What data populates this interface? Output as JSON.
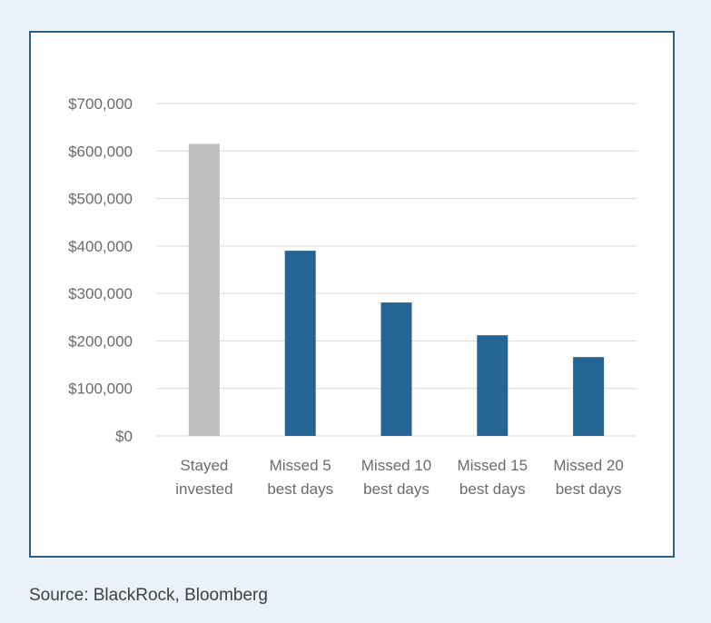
{
  "chart_data": {
    "type": "bar",
    "categories": [
      [
        "Stayed",
        "invested"
      ],
      [
        "Missed 5",
        "best days"
      ],
      [
        "Missed 10",
        "best days"
      ],
      [
        "Missed 15",
        "best days"
      ],
      [
        "Missed 20",
        "best days"
      ]
    ],
    "values": [
      615000,
      390000,
      281000,
      212000,
      166000
    ],
    "bar_colors": [
      "#bfbfbf",
      "#256593",
      "#256593",
      "#256593",
      "#256593"
    ],
    "y_ticks": [
      0,
      100000,
      200000,
      300000,
      400000,
      500000,
      600000,
      700000
    ],
    "y_tick_labels": [
      "$0",
      "$100,000",
      "$200,000",
      "$300,000",
      "$400,000",
      "$500,000",
      "$600,000",
      "$700,000"
    ],
    "ylim": [
      0,
      700000
    ],
    "grid": true,
    "title": "",
    "xlabel": "",
    "ylabel": ""
  },
  "colors": {
    "page_background": "#eaf1f8",
    "card_border": "#2e6088",
    "gridline": "#d9d9d9",
    "text": "#6b6b6b"
  },
  "source": "Source: BlackRock, Bloomberg"
}
